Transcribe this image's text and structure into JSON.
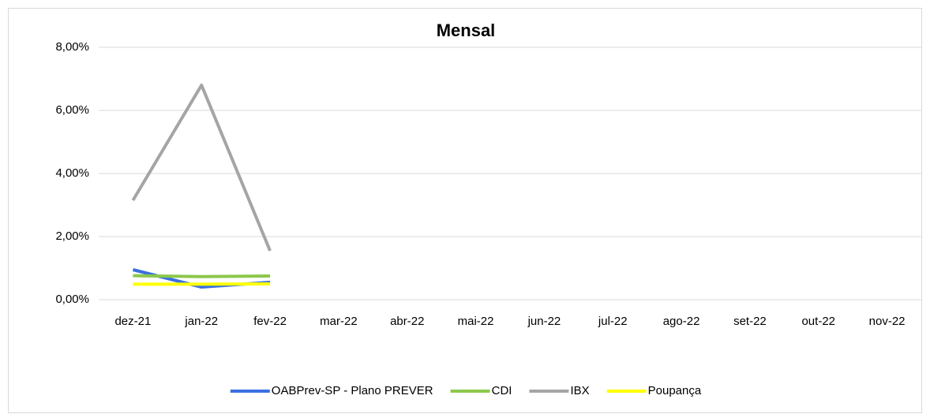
{
  "chart_data": {
    "type": "line",
    "title": "Mensal",
    "categories": [
      "dez-21",
      "jan-22",
      "fev-22",
      "mar-22",
      "abr-22",
      "mai-22",
      "jun-22",
      "jul-22",
      "ago-22",
      "set-22",
      "out-22",
      "nov-22"
    ],
    "series": [
      {
        "name": "OABPrev-SP - Plano PREVER",
        "color": "#3a6fe0",
        "values": [
          0.95,
          0.4,
          0.55,
          null,
          null,
          null,
          null,
          null,
          null,
          null,
          null,
          null
        ]
      },
      {
        "name": "CDI",
        "color": "#8cc84b",
        "values": [
          0.76,
          0.73,
          0.75,
          null,
          null,
          null,
          null,
          null,
          null,
          null,
          null,
          null
        ]
      },
      {
        "name": "IBX",
        "color": "#a5a5a5",
        "values": [
          3.15,
          6.8,
          1.55,
          null,
          null,
          null,
          null,
          null,
          null,
          null,
          null,
          null
        ]
      },
      {
        "name": "Poupança",
        "color": "#ffff00",
        "values": [
          0.49,
          0.49,
          0.5,
          null,
          null,
          null,
          null,
          null,
          null,
          null,
          null,
          null
        ]
      }
    ],
    "ylim": [
      0,
      8
    ],
    "yticks": [
      {
        "value": 0,
        "label": "0,00%"
      },
      {
        "value": 2,
        "label": "2,00%"
      },
      {
        "value": 4,
        "label": "4,00%"
      },
      {
        "value": 6,
        "label": "6,00%"
      },
      {
        "value": 8,
        "label": "8,00%"
      }
    ],
    "grid": true,
    "legend": "bottom"
  }
}
